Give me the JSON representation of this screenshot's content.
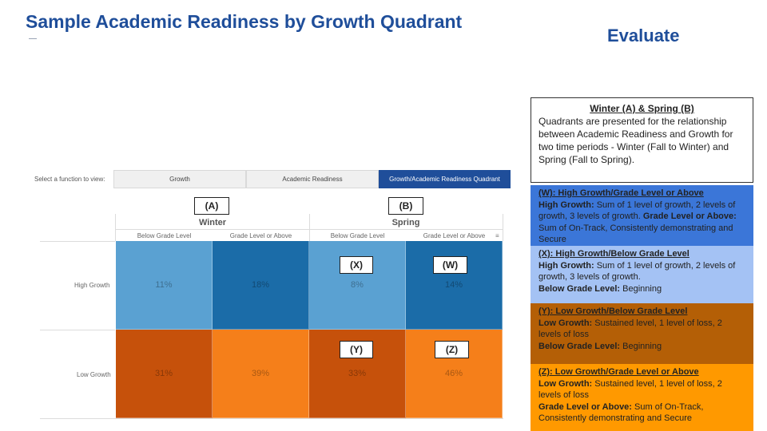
{
  "title": "Sample Academic Readiness by Growth Quadrant",
  "evaluate": "Evaluate",
  "selector": {
    "label": "Select a function to view:",
    "options": [
      "Growth",
      "Academic Readiness",
      "Growth/Academic Readiness Quadrant"
    ],
    "selected": "Growth/Academic Readiness Quadrant"
  },
  "markers": {
    "a": "(A)",
    "b": "(B)",
    "w": "(W)",
    "x": "(X)",
    "y": "(Y)",
    "z": "(Z)"
  },
  "table": {
    "periods": [
      "Winter",
      "Spring"
    ],
    "columns": [
      "Below Grade Level",
      "Grade Level or Above",
      "Below Grade Level",
      "Grade Level or Above"
    ],
    "rows": [
      {
        "label": "High Growth",
        "values": [
          "11%",
          "18%",
          "8%",
          "14%"
        ]
      },
      {
        "label": "Low Growth",
        "values": [
          "31%",
          "39%",
          "33%",
          "46%"
        ]
      }
    ],
    "colors": {
      "high_below": "#5aa1d2",
      "high_above": "#1b6ca8",
      "low_below": "#c6510b",
      "low_above": "#f57f1a"
    },
    "sort_icon": "sort-icon"
  },
  "description": {
    "heading": "Winter (A) & Spring (B)",
    "body": "Quadrants are presented for the relationship between Academic Readiness and Growth for two time periods - Winter (Fall to Winter) and Spring (Fall to Spring)."
  },
  "legend": {
    "w": {
      "title": "(W): High Growth/Grade Level or Above",
      "k1": "High Growth:",
      "v1": " Sum of 1 level of growth, 2 levels of growth, 3 levels of growth. ",
      "k2": "Grade Level or Above:",
      "v2": " Sum of On-Track, Consistently demonstrating and Secure",
      "color": "#3b76d8"
    },
    "x": {
      "title": "(X): High Growth/Below Grade Level",
      "k1": "High Growth:",
      "v1": " Sum of 1 level of growth, 2 levels of growth, 3 levels of growth.",
      "k2": "Below Grade Level:",
      "v2": " Beginning",
      "color": "#a4c2f4"
    },
    "y": {
      "title": "(Y): Low Growth/Below Grade Level",
      "k1": "Low Growth:",
      "v1": " Sustained level, 1 level of loss, 2 levels of loss",
      "k2": "Below Grade Level:",
      "v2": " Beginning",
      "color": "#b45f06"
    },
    "z": {
      "title": "(Z): Low Growth/Grade Level or Above",
      "k1": "Low Growth:",
      "v1": " Sustained level, 1 level of loss, 2 levels of loss",
      "k2": "Grade Level or Above:",
      "v2": " Sum of On-Track, Consistently demonstrating and Secure",
      "color": "#ff9900"
    }
  }
}
